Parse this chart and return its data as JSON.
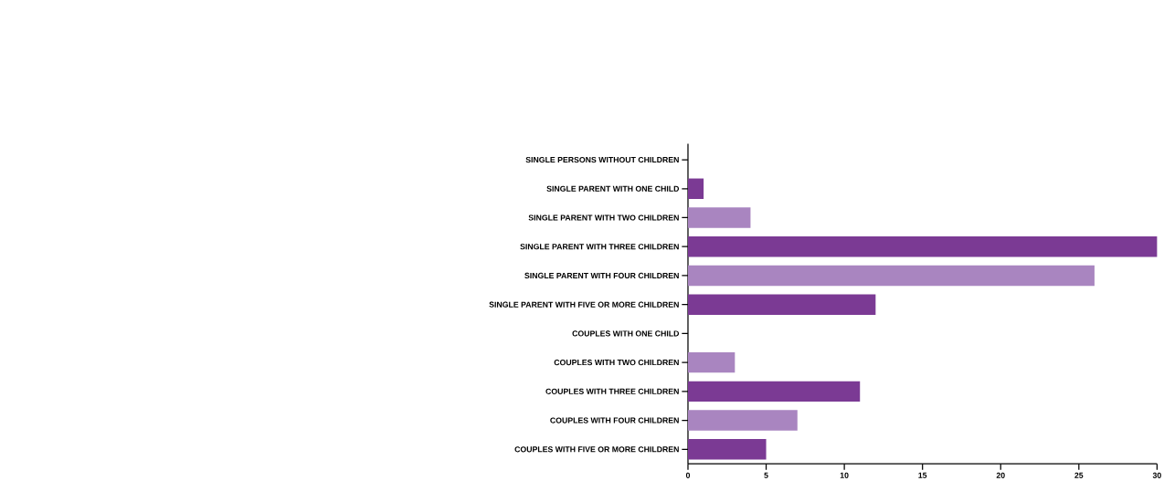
{
  "chart_data": {
    "type": "bar",
    "orientation": "horizontal",
    "categories": [
      "SINGLE PERSONS WITHOUT CHILDREN",
      "SINGLE PARENT WITH ONE CHILD",
      "SINGLE PARENT WITH TWO CHILDREN",
      "SINGLE PARENT WITH THREE CHILDREN",
      "SINGLE PARENT WITH FOUR CHILDREN",
      "SINGLE PARENT WITH FIVE OR MORE CHILDREN",
      "COUPLES WITH ONE CHILD",
      "COUPLES WITH TWO CHILDREN",
      "COUPLES WITH THREE CHILDREN",
      "COUPLES WITH FOUR CHILDREN",
      "COUPLES WITH FIVE OR MORE CHILDREN"
    ],
    "values": [
      0,
      1,
      4,
      30,
      26,
      12,
      0,
      3,
      11,
      7,
      5
    ],
    "colors": [
      "#7b3a94",
      "#7b3a94",
      "#a985c0",
      "#7b3a94",
      "#a985c0",
      "#7b3a94",
      "#a985c0",
      "#a985c0",
      "#7b3a94",
      "#a985c0",
      "#7b3a94"
    ],
    "xlim": [
      0,
      30
    ],
    "xticks": [
      0,
      5,
      10,
      15,
      20,
      25,
      30
    ]
  }
}
